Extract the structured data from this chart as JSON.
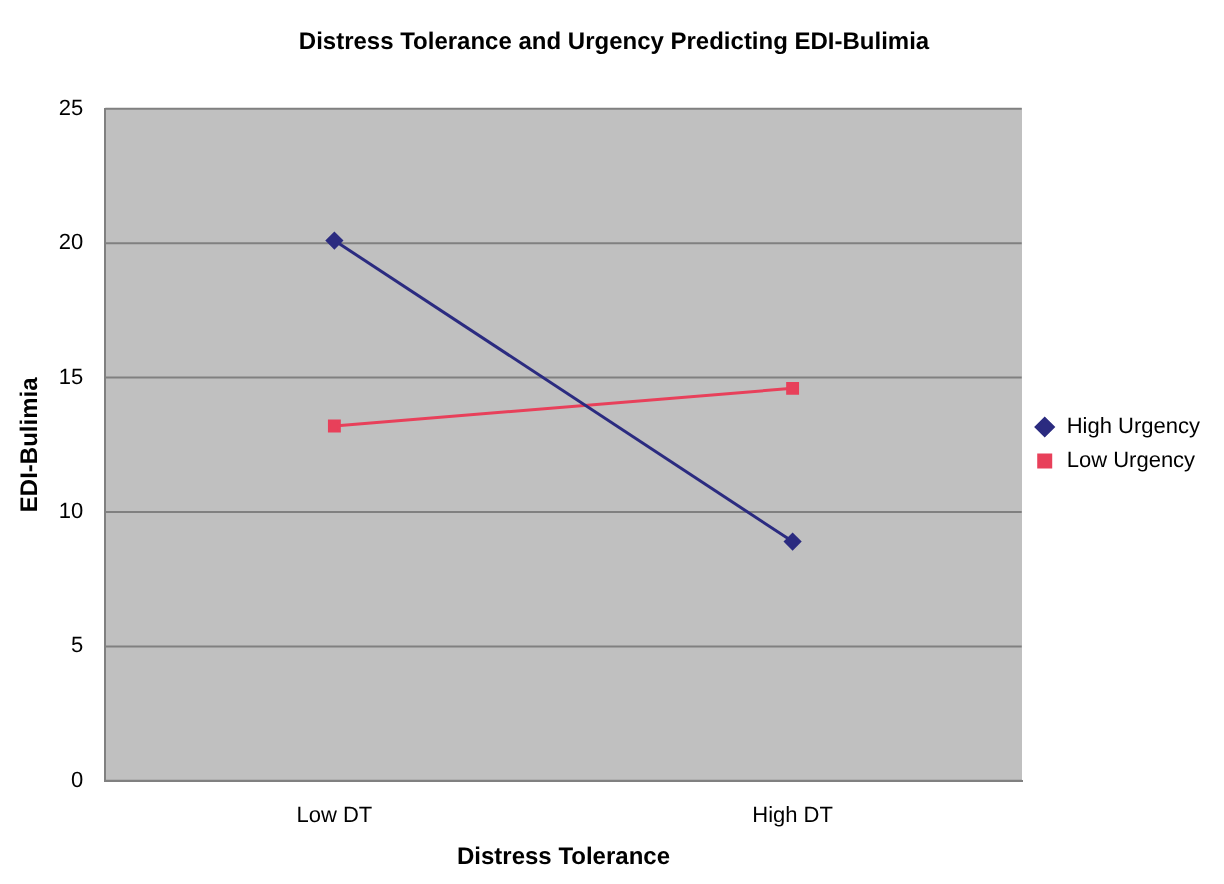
{
  "chart_data": {
    "type": "line",
    "title": "Distress Tolerance and Urgency Predicting EDI-Bulimia",
    "xlabel": "Distress Tolerance",
    "ylabel": "EDI-Bulimia",
    "categories": [
      "Low DT",
      "High DT"
    ],
    "series": [
      {
        "name": "High Urgency",
        "color": "#2b2b80",
        "values": [
          20.1,
          8.9
        ],
        "marker": "diamond"
      },
      {
        "name": "Low Urgency",
        "color": "#e8405a",
        "values": [
          13.2,
          14.6
        ],
        "marker": "square"
      }
    ],
    "ylim": [
      0,
      25
    ],
    "yticks": [
      0,
      5,
      10,
      15,
      20,
      25
    ],
    "grid": "y",
    "legend": "right",
    "line_style": "solid"
  }
}
